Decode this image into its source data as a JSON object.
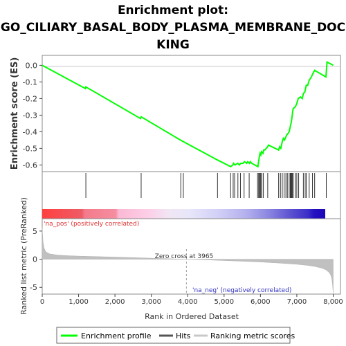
{
  "chart_data": {
    "type": "line",
    "title_lines": [
      "Enrichment plot:",
      "GO_CILIARY_BASAL_BODY_PLASMA_MEMBRANE_DOC",
      "KING"
    ],
    "es_panel": {
      "ylabel": "Enrichment score (ES)",
      "ylim": [
        -0.64,
        0.06
      ],
      "yticks": [
        "0.0",
        "-0.1",
        "-0.2",
        "-0.3",
        "-0.4",
        "-0.5",
        "-0.6"
      ],
      "ytick_values": [
        0.0,
        -0.1,
        -0.2,
        -0.3,
        -0.4,
        -0.5,
        -0.6
      ],
      "series": [
        {
          "name": "Enrichment profile",
          "color": "#00ff00",
          "x": [
            0,
            1190,
            1200,
            2700,
            2720,
            3800,
            4820,
            5180,
            5240,
            5260,
            5300,
            5380,
            5420,
            5460,
            5520,
            5560,
            5620,
            5650,
            5700,
            5720,
            5760,
            5930,
            5950,
            5970,
            5990,
            6010,
            6030,
            6070,
            6090,
            6120,
            6200,
            6220,
            6500,
            6530,
            6560,
            6600,
            6630,
            6660,
            6700,
            6720,
            6760,
            6790,
            6810,
            6830,
            6850,
            6870,
            6880,
            6900,
            6960,
            7000,
            7040,
            7100,
            7150,
            7180,
            7220,
            7260,
            7300,
            7340,
            7400,
            7440,
            7490,
            7800,
            7830,
            8000
          ],
          "y": [
            0.0,
            -0.14,
            -0.13,
            -0.32,
            -0.31,
            -0.45,
            -0.57,
            -0.61,
            -0.6,
            -0.59,
            -0.6,
            -0.59,
            -0.6,
            -0.59,
            -0.59,
            -0.58,
            -0.59,
            -0.58,
            -0.59,
            -0.58,
            -0.59,
            -0.61,
            -0.58,
            -0.55,
            -0.53,
            -0.54,
            -0.52,
            -0.53,
            -0.51,
            -0.51,
            -0.49,
            -0.48,
            -0.51,
            -0.49,
            -0.5,
            -0.46,
            -0.44,
            -0.45,
            -0.43,
            -0.42,
            -0.41,
            -0.4,
            -0.38,
            -0.36,
            -0.34,
            -0.31,
            -0.29,
            -0.26,
            -0.25,
            -0.23,
            -0.2,
            -0.19,
            -0.2,
            -0.17,
            -0.16,
            -0.12,
            -0.12,
            -0.09,
            -0.07,
            -0.05,
            -0.03,
            -0.07,
            0.02,
            0.0
          ]
        }
      ]
    },
    "hits": {
      "name": "Hits",
      "positions": [
        1200,
        2720,
        3810,
        3880,
        4820,
        5180,
        5250,
        5290,
        5380,
        5450,
        5550,
        5690,
        5920,
        5950,
        5970,
        5990,
        6010,
        6040,
        6080,
        6200,
        6500,
        6550,
        6600,
        6650,
        6700,
        6740,
        6790,
        6820,
        6840,
        6860,
        6880,
        6900,
        6960,
        7000,
        7050,
        7180,
        7230,
        7260,
        7340,
        7430,
        7490,
        7810
      ]
    },
    "rank_panel": {
      "ylabel": "Ranked list metric (PreRanked)",
      "xlabel": "Rank in Ordered Dataset",
      "ylim": [
        -6.2,
        7.2
      ],
      "yticks": [
        "5",
        "0",
        "-5"
      ],
      "ytick_values": [
        5,
        0,
        -5
      ],
      "xlim": [
        0,
        8200
      ],
      "xticks": [
        "0",
        "1,000",
        "2,000",
        "3,000",
        "4,000",
        "5,000",
        "6,000",
        "7,000",
        "8,000"
      ],
      "xtick_values": [
        0,
        1000,
        2000,
        3000,
        4000,
        5000,
        6000,
        7000,
        8000
      ],
      "curve_x": [
        0,
        20,
        50,
        100,
        200,
        400,
        700,
        1000,
        1500,
        2000,
        2500,
        3000,
        3500,
        3965,
        4500,
        5000,
        5500,
        6000,
        6500,
        7000,
        7300,
        7500,
        7700,
        7800,
        7880,
        7930,
        7960,
        7980,
        8000
      ],
      "curve_y": [
        5.6,
        3.2,
        2.0,
        1.3,
        0.95,
        0.75,
        0.62,
        0.55,
        0.46,
        0.38,
        0.28,
        0.18,
        0.08,
        0.0,
        -0.12,
        -0.24,
        -0.36,
        -0.5,
        -0.68,
        -0.9,
        -1.1,
        -1.3,
        -1.6,
        -1.9,
        -2.3,
        -2.8,
        -3.4,
        -4.3,
        -6.0
      ],
      "zero_cross": 3965,
      "zero_cross_label": "Zero cross at 3965",
      "pos_label": "'na_pos' (positively correlated)",
      "neg_label": "'na_neg' (negatively correlated)"
    },
    "legend": {
      "entries": [
        {
          "label": "Enrichment profile",
          "color": "#00ff00"
        },
        {
          "label": "Hits",
          "color": "#555555"
        },
        {
          "label": "Ranking metric scores",
          "color": "#c8c8c8"
        }
      ],
      "placement": "bottom"
    },
    "colors": {
      "profile": "#00ff00",
      "pos_label": "#e03030",
      "neg_label": "#3030c0",
      "zero_line": "#a0a0a0",
      "rank_fill": "#c0c0c0",
      "heat_pos": "#f03030",
      "heat_neg": "#2010c0"
    }
  }
}
